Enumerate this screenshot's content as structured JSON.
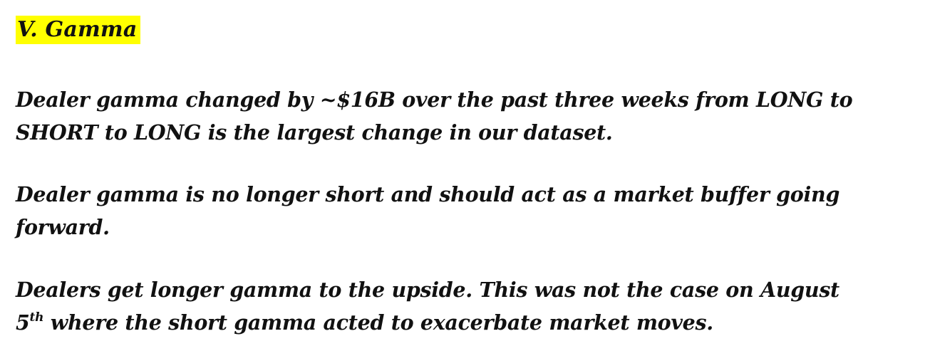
{
  "heading": "V. Gamma",
  "paragraphs": {
    "p1_line1": "Dealer gamma changed by ~$16B over the past three weeks from LONG to",
    "p1_line2": "SHORT to LONG is the largest change in our dataset.",
    "p2_line1": "Dealer gamma is no longer short and should act as a market buffer going",
    "p2_line2": "forward.",
    "p3_line1": "Dealers get longer gamma to the upside. This was not the case on August",
    "p3_line2_num": "5",
    "p3_line2_sup": "th",
    "p3_line2_rest": " where the short gamma acted to exacerbate market moves."
  }
}
